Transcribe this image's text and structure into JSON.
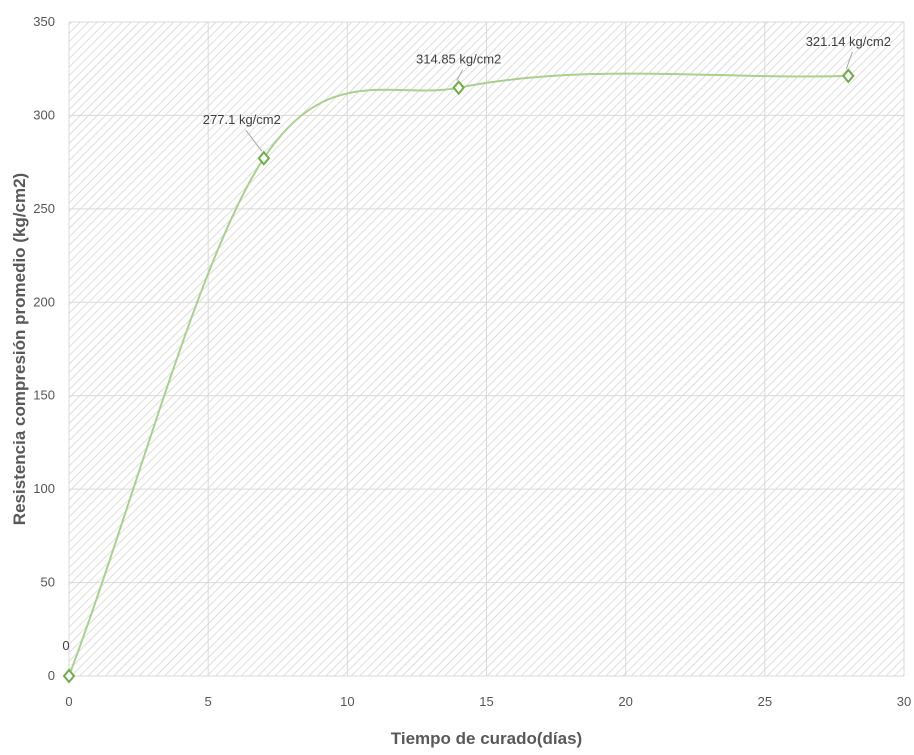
{
  "chart_data": {
    "type": "line",
    "title": "",
    "xlabel": "Tiempo de curado(días)",
    "ylabel": "Resistencia compresión promedio  (kg/cm2)",
    "xlim": [
      0,
      30
    ],
    "ylim": [
      0,
      350
    ],
    "xticks": [
      0,
      5,
      10,
      15,
      20,
      25,
      30
    ],
    "yticks": [
      0,
      50,
      100,
      150,
      200,
      250,
      300,
      350
    ],
    "grid": true,
    "legend": "none",
    "smooth": true,
    "series": [
      {
        "x": [
          0,
          7,
          14,
          28
        ],
        "y": [
          0,
          277.1,
          314.85,
          321.14
        ],
        "labels": [
          "0",
          "277.1 kg/cm2",
          "314.85 kg/cm2",
          "321.14 kg/cm2"
        ]
      }
    ],
    "colors": {
      "line": "#a9d18e",
      "marker": "#70ad47",
      "grid": "#d9d9d9",
      "hatch": "#d0d0d0",
      "tick_text": "#555555",
      "axis_title": "#595959"
    }
  }
}
